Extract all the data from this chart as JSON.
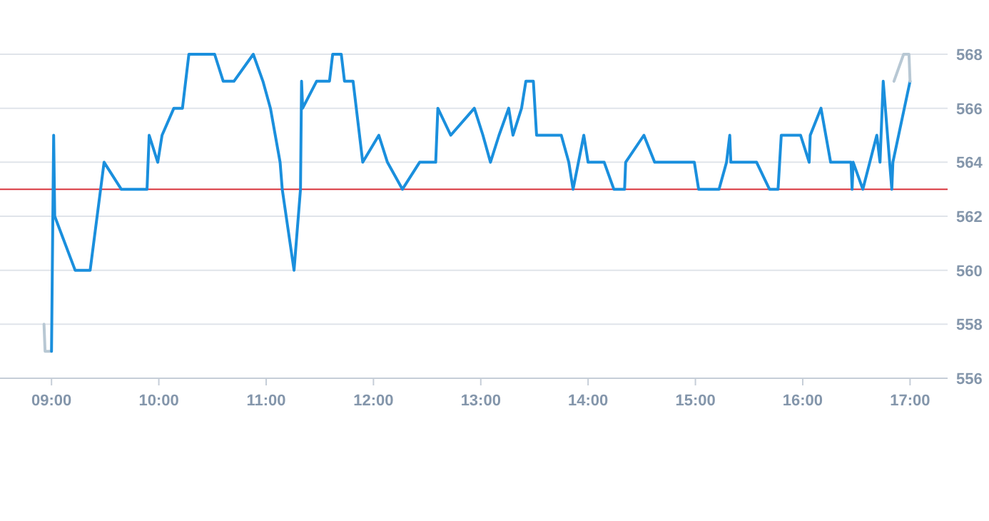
{
  "chart_data": {
    "type": "line",
    "xlim": [
      8.52,
      17.35
    ],
    "ylim": [
      556,
      568
    ],
    "xticks": [
      {
        "value": 9,
        "label": "09:00"
      },
      {
        "value": 10,
        "label": "10:00"
      },
      {
        "value": 11,
        "label": "11:00"
      },
      {
        "value": 12,
        "label": "12:00"
      },
      {
        "value": 13,
        "label": "13:00"
      },
      {
        "value": 14,
        "label": "14:00"
      },
      {
        "value": 15,
        "label": "15:00"
      },
      {
        "value": 16,
        "label": "16:00"
      },
      {
        "value": 17,
        "label": "17:00"
      }
    ],
    "yticks": [
      556,
      558,
      560,
      562,
      564,
      566,
      568
    ],
    "grid": "y",
    "marker": "none",
    "line_style": "solid",
    "ref_lines": [
      {
        "axis": "y",
        "value": 563,
        "color": "#d9363e"
      }
    ],
    "series": [
      {
        "color": "#b8c8d4",
        "x": [
          8.93,
          8.94,
          9.0
        ],
        "values": [
          558,
          557,
          557
        ]
      },
      {
        "color": "#1a8fdd",
        "x": [
          9.0,
          9.02,
          9.03,
          9.22,
          9.36,
          9.49,
          9.65,
          9.89,
          9.91,
          9.99,
          10.03,
          10.14,
          10.22,
          10.28,
          10.52,
          10.6,
          10.7,
          10.88,
          10.97,
          11.04,
          11.13,
          11.15,
          11.26,
          11.32,
          11.33,
          11.34,
          11.47,
          11.59,
          11.62,
          11.7,
          11.73,
          11.81,
          11.9,
          12.05,
          12.13,
          12.27,
          12.43,
          12.58,
          12.6,
          12.72,
          12.94,
          13.02,
          13.09,
          13.17,
          13.26,
          13.3,
          13.38,
          13.42,
          13.49,
          13.52,
          13.75,
          13.82,
          13.86,
          13.96,
          14.0,
          14.15,
          14.24,
          14.34,
          14.35,
          14.52,
          14.62,
          14.99,
          15.03,
          15.22,
          15.29,
          15.32,
          15.33,
          15.57,
          15.69,
          15.77,
          15.8,
          15.98,
          16.06,
          16.07,
          16.17,
          16.26,
          16.45,
          16.46,
          16.47,
          16.56,
          16.69,
          16.72,
          16.75,
          16.83,
          16.84,
          17.0
        ],
        "values": [
          557,
          565,
          562,
          560,
          560,
          564,
          563,
          563,
          565,
          564,
          565,
          566,
          566,
          568,
          568,
          567,
          567,
          568,
          567,
          566,
          564,
          563,
          560,
          563,
          567,
          566,
          567,
          567,
          568,
          568,
          567,
          567,
          564,
          565,
          564,
          563,
          564,
          564,
          566,
          565,
          566,
          565,
          564,
          565,
          566,
          565,
          566,
          567,
          567,
          565,
          565,
          564,
          563,
          565,
          564,
          564,
          563,
          563,
          564,
          565,
          564,
          564,
          563,
          563,
          564,
          565,
          564,
          564,
          563,
          563,
          565,
          565,
          564,
          565,
          566,
          564,
          564,
          563,
          564,
          563,
          565,
          564,
          567,
          563,
          564,
          567
        ]
      },
      {
        "color": "#b8c8d4",
        "x": [
          16.85,
          16.94,
          16.99,
          17.0
        ],
        "values": [
          567,
          568,
          568,
          567
        ]
      }
    ]
  }
}
